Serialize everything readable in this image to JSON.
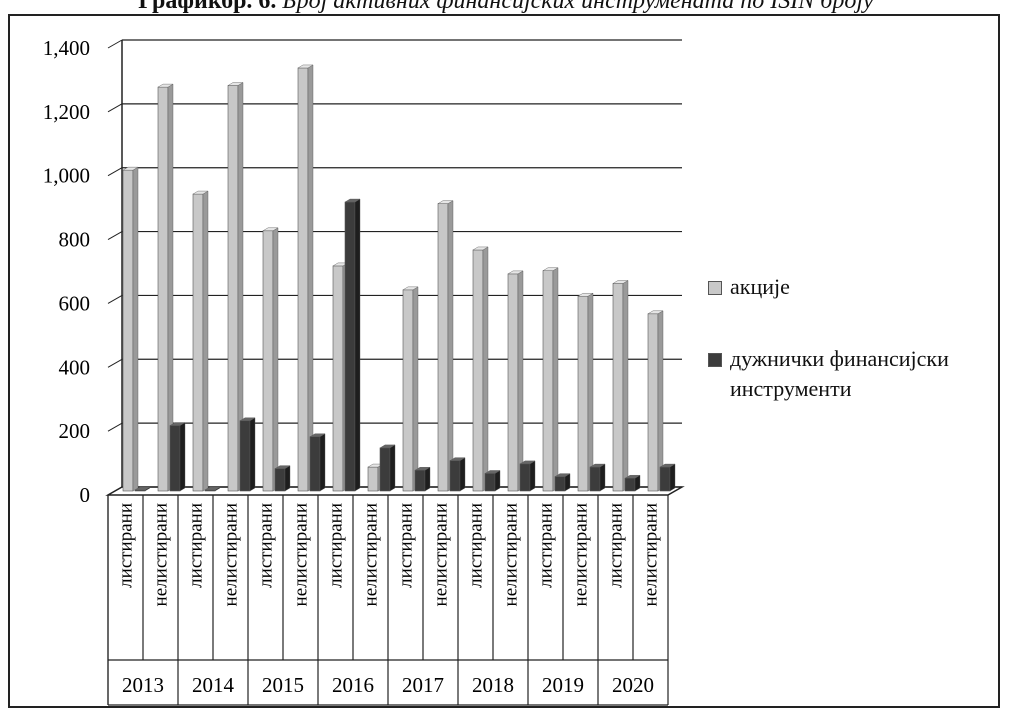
{
  "caption": {
    "bold_part": "Графикбр. 6.",
    "italic_part": "Број активних финансијских инструмената по ISIN броју"
  },
  "colors": {
    "akcije": "#c8c8c8",
    "duznicki": "#3c3c3c",
    "grid": "#222222"
  },
  "chart_data": {
    "type": "bar",
    "title": "",
    "xlabel": "",
    "ylabel": "",
    "ylim": [
      0,
      1400
    ],
    "y_ticks": [
      "0",
      "200",
      "400",
      "600",
      "800",
      "1,000",
      "1,200",
      "1,400"
    ],
    "grid": true,
    "legend_position": "right",
    "categories": [
      {
        "year": "2013",
        "type": "листирани"
      },
      {
        "year": "2013",
        "type": "нелистирани"
      },
      {
        "year": "2014",
        "type": "листирани"
      },
      {
        "year": "2014",
        "type": "нелистирани"
      },
      {
        "year": "2015",
        "type": "листирани"
      },
      {
        "year": "2015",
        "type": "нелистирани"
      },
      {
        "year": "2016",
        "type": "листирани"
      },
      {
        "year": "2016",
        "type": "нелистирани"
      },
      {
        "year": "2017",
        "type": "листирани"
      },
      {
        "year": "2017",
        "type": "нелистирани"
      },
      {
        "year": "2018",
        "type": "листирани"
      },
      {
        "year": "2018",
        "type": "нелистирани"
      },
      {
        "year": "2019",
        "type": "листирани"
      },
      {
        "year": "2019",
        "type": "нелистирани"
      },
      {
        "year": "2020",
        "type": "листирани"
      },
      {
        "year": "2020",
        "type": "нелистирани"
      }
    ],
    "years": [
      "2013",
      "2014",
      "2015",
      "2016",
      "2017",
      "2018",
      "2019",
      "2020"
    ],
    "series": [
      {
        "name": "акције",
        "values": [
          1005,
          1265,
          930,
          1270,
          815,
          1325,
          705,
          75,
          630,
          900,
          755,
          680,
          690,
          610,
          650,
          555
        ]
      },
      {
        "name": "дужнички финансијски инструменти",
        "values": [
          3,
          205,
          3,
          220,
          70,
          170,
          905,
          135,
          65,
          95,
          55,
          85,
          45,
          75,
          40,
          75
        ]
      }
    ]
  }
}
